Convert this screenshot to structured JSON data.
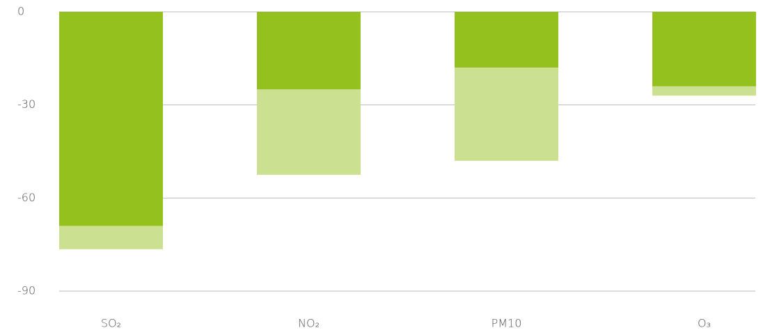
{
  "chart_data": {
    "type": "stacked-bar",
    "categories": [
      "SO₂",
      "NO₂",
      "PM10",
      "O₃"
    ],
    "series": [
      {
        "color": "#95c11f",
        "values": [
          -69,
          -25,
          -18,
          -24
        ]
      },
      {
        "color": "#cce092",
        "values": [
          -7.5,
          -27.5,
          -30,
          -3
        ]
      }
    ],
    "ylim": [
      -90,
      0
    ],
    "yticks": [
      0,
      -30,
      -60,
      -90
    ],
    "grid": true
  }
}
